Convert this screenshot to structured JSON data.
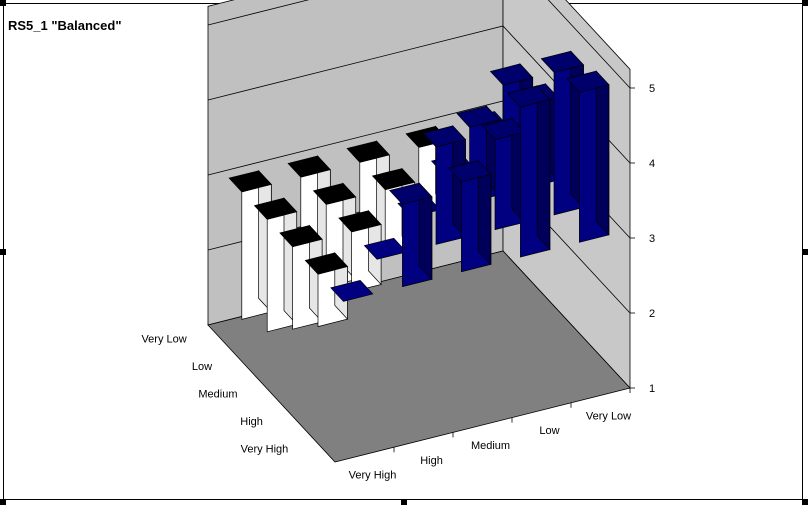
{
  "chart_data": {
    "type": "bar",
    "subtype": "3d-column",
    "title": "RS5_1 \"Balanced\"",
    "x_categories": [
      "Very High",
      "High",
      "Medium",
      "Low",
      "Very Low"
    ],
    "depth_categories": [
      "Very High",
      "High",
      "Medium",
      "Low",
      "Very Low"
    ],
    "z_ticks": [
      "1",
      "2",
      "3",
      "4",
      "5"
    ],
    "zlim": [
      1,
      5
    ],
    "baseline": 3,
    "grid": true,
    "grid_mark_values": [
      2,
      3,
      4,
      5
    ],
    "colors": {
      "above_baseline": "#000080",
      "below_baseline": "#ffffff",
      "back_wall": "#c0c0c0",
      "side_wall": "#c8c8c8",
      "floor": "#808080"
    },
    "cells": [
      {
        "x": "Very High",
        "depth": "Very High",
        "value": 3
      },
      {
        "x": "Very High",
        "depth": "High",
        "value": 2.3
      },
      {
        "x": "Very High",
        "depth": "Medium",
        "value": 1.9
      },
      {
        "x": "Very High",
        "depth": "Low",
        "value": 1.5
      },
      {
        "x": "Very High",
        "depth": "Very Low",
        "value": 1.3
      },
      {
        "x": "High",
        "depth": "Very High",
        "value": 4.1
      },
      {
        "x": "High",
        "depth": "High",
        "value": 3
      },
      {
        "x": "High",
        "depth": "Medium",
        "value": 2.2
      },
      {
        "x": "High",
        "depth": "Low",
        "value": 1.9
      },
      {
        "x": "High",
        "depth": "Very Low",
        "value": 1.4
      },
      {
        "x": "Medium",
        "depth": "Very High",
        "value": 4.2
      },
      {
        "x": "Medium",
        "depth": "High",
        "value": 4.3
      },
      {
        "x": "Medium",
        "depth": "Medium",
        "value": 3
      },
      {
        "x": "Medium",
        "depth": "Low",
        "value": 2.1
      },
      {
        "x": "Medium",
        "depth": "Very Low",
        "value": 1.7
      },
      {
        "x": "Low",
        "depth": "Very High",
        "value": 5
      },
      {
        "x": "Low",
        "depth": "High",
        "value": 4.2
      },
      {
        "x": "Low",
        "depth": "Medium",
        "value": 4
      },
      {
        "x": "Low",
        "depth": "Low",
        "value": 3
      },
      {
        "x": "Low",
        "depth": "Very Low",
        "value": 2.1
      },
      {
        "x": "Very Low",
        "depth": "Very High",
        "value": 5
      },
      {
        "x": "Very Low",
        "depth": "High",
        "value": 4.9
      },
      {
        "x": "Very Low",
        "depth": "Medium",
        "value": 4.1
      },
      {
        "x": "Very Low",
        "depth": "Low",
        "value": 4
      },
      {
        "x": "Very Low",
        "depth": "Very Low",
        "value": 3
      }
    ]
  }
}
